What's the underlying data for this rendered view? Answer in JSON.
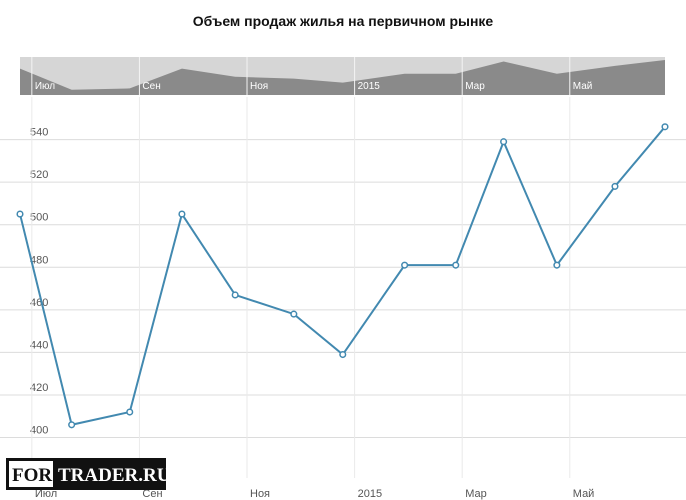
{
  "chart_data": {
    "type": "line",
    "title": "Объем продаж жилья на первичном рынке",
    "x": [
      -0.22,
      0.74,
      1.82,
      2.79,
      3.78,
      4.87,
      5.78,
      6.93,
      7.88,
      8.77,
      9.76,
      10.84,
      11.77
    ],
    "series": [
      {
        "color": "#4289b0",
        "values": [
          505,
          406,
          412,
          505,
          467,
          458,
          439,
          481,
          481,
          539,
          481,
          518,
          546
        ]
      }
    ],
    "xlim": [
      -0.22,
      11.77
    ],
    "xticks": [
      {
        "value": 0,
        "label": "Июл"
      },
      {
        "value": 2,
        "label": "Сен"
      },
      {
        "value": 4,
        "label": "Ноя"
      },
      {
        "value": 6,
        "label": "2015"
      },
      {
        "value": 8,
        "label": "Мар"
      },
      {
        "value": 10,
        "label": "Май"
      }
    ],
    "ylim": [
      381,
      560
    ],
    "yticks": [
      400,
      420,
      440,
      460,
      480,
      500,
      520,
      540
    ],
    "grid": true,
    "navigator": true,
    "watermark": [
      "FOR",
      "TRADER.RU"
    ]
  }
}
